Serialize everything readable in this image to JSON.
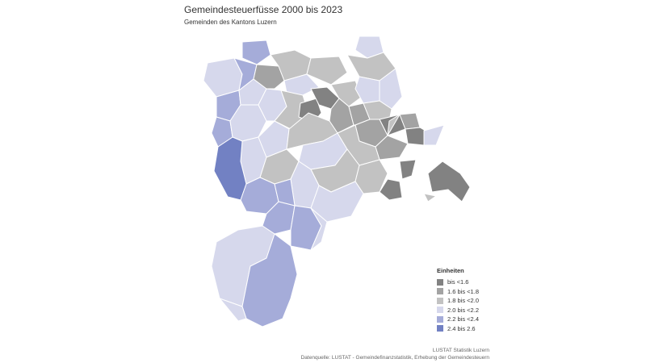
{
  "header": {
    "title": "Gemeindesteuerfüsse 2000 bis 2023",
    "subtitle": "Gemeinden des Kantons Luzern"
  },
  "legend": {
    "title": "Einheiten",
    "items": [
      {
        "label": "bis <1.6",
        "color": "#828282"
      },
      {
        "label": "1.6 bis <1.8",
        "color": "#a3a3a3"
      },
      {
        "label": "1.8 bis <2.0",
        "color": "#c2c2c2"
      },
      {
        "label": "2.0 bis <2.2",
        "color": "#d6d8ec"
      },
      {
        "label": "2.2 bis <2.4",
        "color": "#a5acd9"
      },
      {
        "label": "2.4 bis 2.6",
        "color": "#7281c3"
      }
    ]
  },
  "source": {
    "line1": "LUSTAT Statistik Luzern",
    "line2": "Datenquelle: LUSTAT - Gemeindefinanzstatistik, Erhebung der Gemeindesteuern"
  }
}
